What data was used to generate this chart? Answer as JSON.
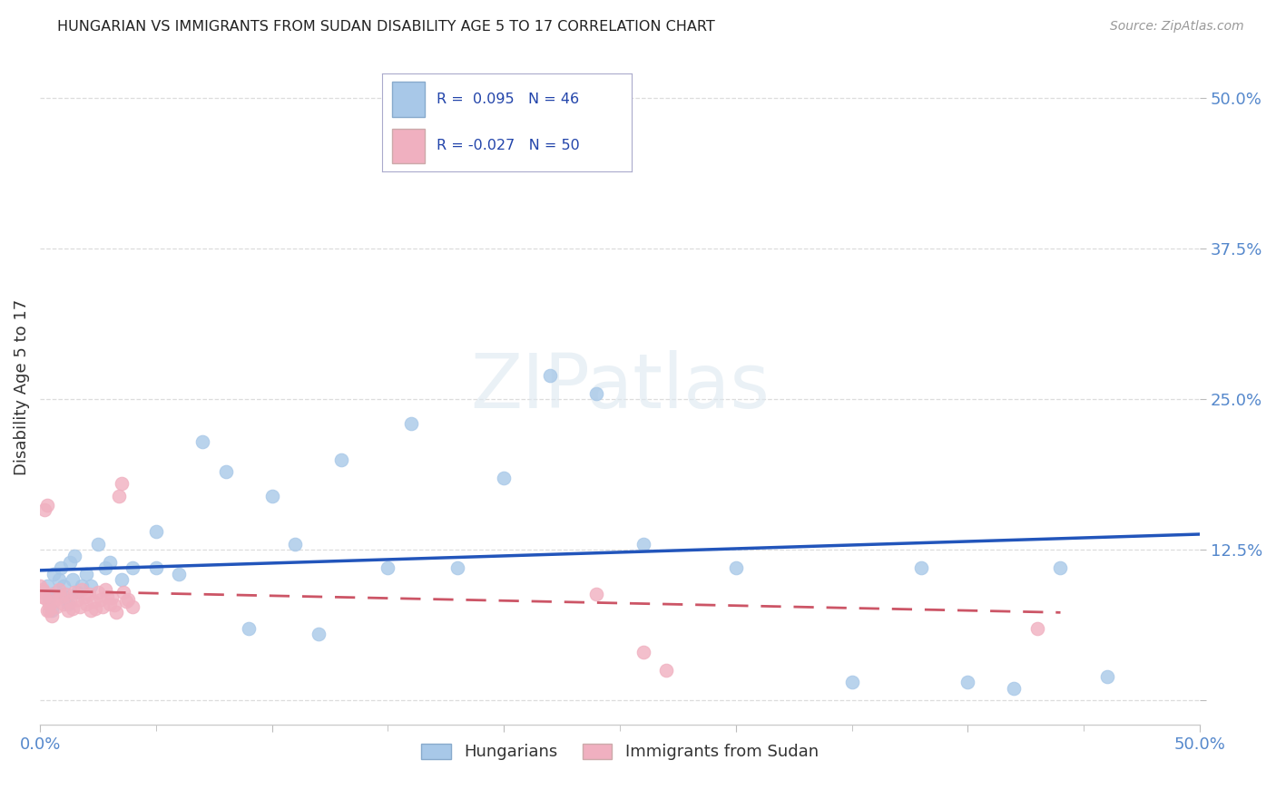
{
  "title": "HUNGARIAN VS IMMIGRANTS FROM SUDAN DISABILITY AGE 5 TO 17 CORRELATION CHART",
  "source": "Source: ZipAtlas.com",
  "ylabel": "Disability Age 5 to 17",
  "xlim": [
    0.0,
    0.5
  ],
  "ylim": [
    -0.02,
    0.54
  ],
  "xticks": [
    0.0,
    0.1,
    0.2,
    0.3,
    0.4,
    0.5
  ],
  "xticklabels": [
    "0.0%",
    "",
    "",
    "",
    "",
    "50.0%"
  ],
  "yticks": [
    0.0,
    0.125,
    0.25,
    0.375,
    0.5
  ],
  "yticklabels": [
    "",
    "12.5%",
    "25.0%",
    "37.5%",
    "50.0%"
  ],
  "blue_color": "#a8c8e8",
  "pink_color": "#f0b0c0",
  "blue_line_color": "#2255bb",
  "pink_line_color": "#cc5566",
  "hungarian_x": [
    0.003,
    0.004,
    0.005,
    0.006,
    0.007,
    0.008,
    0.009,
    0.01,
    0.011,
    0.012,
    0.013,
    0.014,
    0.015,
    0.016,
    0.018,
    0.02,
    0.022,
    0.025,
    0.028,
    0.03,
    0.035,
    0.04,
    0.05,
    0.06,
    0.07,
    0.08,
    0.1,
    0.11,
    0.13,
    0.15,
    0.16,
    0.18,
    0.2,
    0.22,
    0.24,
    0.26,
    0.3,
    0.35,
    0.38,
    0.4,
    0.42,
    0.44,
    0.46,
    0.05,
    0.09,
    0.12
  ],
  "hungarian_y": [
    0.095,
    0.085,
    0.075,
    0.105,
    0.09,
    0.1,
    0.11,
    0.095,
    0.085,
    0.08,
    0.115,
    0.1,
    0.12,
    0.09,
    0.095,
    0.105,
    0.095,
    0.13,
    0.11,
    0.115,
    0.1,
    0.11,
    0.11,
    0.105,
    0.215,
    0.19,
    0.17,
    0.13,
    0.2,
    0.11,
    0.23,
    0.11,
    0.185,
    0.27,
    0.255,
    0.13,
    0.11,
    0.015,
    0.11,
    0.015,
    0.01,
    0.11,
    0.02,
    0.14,
    0.06,
    0.055
  ],
  "sudan_x": [
    0.002,
    0.003,
    0.004,
    0.005,
    0.006,
    0.007,
    0.008,
    0.009,
    0.01,
    0.011,
    0.012,
    0.013,
    0.014,
    0.015,
    0.016,
    0.017,
    0.018,
    0.019,
    0.02,
    0.021,
    0.022,
    0.023,
    0.024,
    0.025,
    0.026,
    0.027,
    0.028,
    0.029,
    0.03,
    0.031,
    0.032,
    0.033,
    0.034,
    0.035,
    0.036,
    0.038,
    0.04,
    0.001,
    0.001,
    0.002,
    0.003,
    0.004,
    0.005,
    0.24,
    0.26,
    0.27,
    0.43,
    0.0,
    0.001,
    0.037
  ],
  "sudan_y": [
    0.085,
    0.075,
    0.08,
    0.088,
    0.082,
    0.078,
    0.092,
    0.086,
    0.08,
    0.088,
    0.075,
    0.082,
    0.076,
    0.09,
    0.084,
    0.078,
    0.092,
    0.086,
    0.08,
    0.088,
    0.075,
    0.082,
    0.076,
    0.09,
    0.084,
    0.078,
    0.092,
    0.086,
    0.08,
    0.085,
    0.079,
    0.073,
    0.17,
    0.18,
    0.09,
    0.084,
    0.078,
    0.092,
    0.086,
    0.158,
    0.162,
    0.075,
    0.07,
    0.088,
    0.04,
    0.025,
    0.06,
    0.095,
    0.09,
    0.082
  ],
  "blue_trend_x": [
    0.0,
    0.5
  ],
  "blue_trend_y": [
    0.108,
    0.138
  ],
  "pink_trend_x": [
    0.0,
    0.44
  ],
  "pink_trend_y": [
    0.091,
    0.073
  ]
}
